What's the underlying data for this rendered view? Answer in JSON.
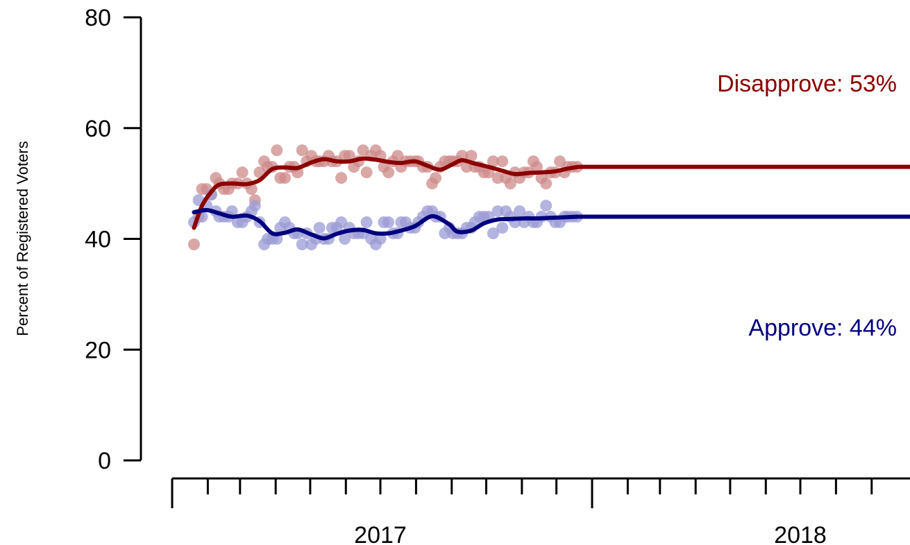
{
  "chart_data": {
    "type": "scatter",
    "title": "",
    "xlabel": "",
    "ylabel": "Percent of Registered Voters",
    "ylim": [
      0,
      80
    ],
    "y_ticks": [
      "0",
      "20",
      "40",
      "60",
      "80"
    ],
    "x_year_labels": [
      {
        "date": "2017-07-01",
        "label": "2017"
      },
      {
        "date": "2018-07-01",
        "label": "2018"
      }
    ],
    "x_major_ticks": [
      "2017-01-01",
      "2018-01-01"
    ],
    "x_minor_ticks": [
      "2017-02-01",
      "2017-03-01",
      "2017-04-01",
      "2017-05-01",
      "2017-06-01",
      "2017-07-01",
      "2017-08-01",
      "2017-09-01",
      "2017-10-01",
      "2017-11-01",
      "2017-12-01",
      "2018-02-01",
      "2018-03-01",
      "2018-04-01",
      "2018-05-01",
      "2018-06-01",
      "2018-07-01",
      "2018-08-01",
      "2018-09-01"
    ],
    "grid": false,
    "colors": {
      "disapprove": "#8b0000",
      "disapprove_points": "#cd8a8a",
      "approve": "#00007f",
      "approve_points": "#9b9bd6"
    },
    "series": [
      {
        "name": "Disapprove: 53%",
        "points": [
          [
            "2017-01-20",
            39
          ],
          [
            "2017-01-24",
            44
          ],
          [
            "2017-01-27",
            49
          ],
          [
            "2017-01-31",
            49
          ],
          [
            "2017-02-04",
            48
          ],
          [
            "2017-02-08",
            51
          ],
          [
            "2017-02-11",
            50
          ],
          [
            "2017-02-15",
            49
          ],
          [
            "2017-02-19",
            49
          ],
          [
            "2017-02-22",
            50
          ],
          [
            "2017-02-27",
            50
          ],
          [
            "2017-03-03",
            52
          ],
          [
            "2017-03-07",
            50
          ],
          [
            "2017-03-11",
            49
          ],
          [
            "2017-03-14",
            47
          ],
          [
            "2017-03-18",
            52
          ],
          [
            "2017-03-22",
            54
          ],
          [
            "2017-03-25",
            53
          ],
          [
            "2017-03-29",
            53
          ],
          [
            "2017-04-02",
            56
          ],
          [
            "2017-04-05",
            51
          ],
          [
            "2017-04-09",
            51
          ],
          [
            "2017-04-13",
            53
          ],
          [
            "2017-04-17",
            53
          ],
          [
            "2017-04-20",
            52
          ],
          [
            "2017-04-24",
            56
          ],
          [
            "2017-04-28",
            54
          ],
          [
            "2017-05-02",
            55
          ],
          [
            "2017-05-06",
            54
          ],
          [
            "2017-05-09",
            54
          ],
          [
            "2017-05-13",
            54
          ],
          [
            "2017-05-17",
            55
          ],
          [
            "2017-05-20",
            54
          ],
          [
            "2017-05-24",
            54
          ],
          [
            "2017-05-28",
            51
          ],
          [
            "2017-05-31",
            55
          ],
          [
            "2017-06-04",
            55
          ],
          [
            "2017-06-08",
            53
          ],
          [
            "2017-06-12",
            54
          ],
          [
            "2017-06-16",
            56
          ],
          [
            "2017-06-19",
            52
          ],
          [
            "2017-06-23",
            55
          ],
          [
            "2017-06-27",
            56
          ],
          [
            "2017-07-01",
            55
          ],
          [
            "2017-07-04",
            53
          ],
          [
            "2017-07-08",
            52
          ],
          [
            "2017-07-12",
            54
          ],
          [
            "2017-07-16",
            55
          ],
          [
            "2017-07-19",
            53
          ],
          [
            "2017-07-23",
            54
          ],
          [
            "2017-07-27",
            54
          ],
          [
            "2017-07-31",
            54
          ],
          [
            "2017-08-03",
            54
          ],
          [
            "2017-08-07",
            53
          ],
          [
            "2017-08-11",
            53
          ],
          [
            "2017-08-15",
            50
          ],
          [
            "2017-08-18",
            51
          ],
          [
            "2017-08-22",
            53
          ],
          [
            "2017-08-26",
            54
          ],
          [
            "2017-08-30",
            54
          ],
          [
            "2017-09-02",
            54
          ],
          [
            "2017-09-06",
            54
          ],
          [
            "2017-09-10",
            55
          ],
          [
            "2017-09-14",
            53
          ],
          [
            "2017-09-18",
            55
          ],
          [
            "2017-09-21",
            53
          ],
          [
            "2017-09-25",
            53
          ],
          [
            "2017-09-29",
            52
          ],
          [
            "2017-10-03",
            52
          ],
          [
            "2017-10-07",
            54
          ],
          [
            "2017-10-11",
            51
          ],
          [
            "2017-10-15",
            54
          ],
          [
            "2017-10-18",
            51
          ],
          [
            "2017-10-22",
            50
          ],
          [
            "2017-10-26",
            52
          ],
          [
            "2017-10-30",
            51
          ],
          [
            "2017-11-03",
            52
          ],
          [
            "2017-11-07",
            52
          ],
          [
            "2017-11-11",
            54
          ],
          [
            "2017-11-14",
            53
          ],
          [
            "2017-11-18",
            51
          ],
          [
            "2017-11-22",
            50
          ],
          [
            "2017-11-26",
            52
          ],
          [
            "2017-11-30",
            52
          ],
          [
            "2017-12-04",
            54
          ],
          [
            "2017-12-08",
            52
          ],
          [
            "2017-12-11",
            53
          ],
          [
            "2017-12-15",
            53
          ],
          [
            "2017-12-19",
            53
          ]
        ],
        "trend": [
          [
            "2017-01-20",
            42
          ],
          [
            "2017-01-27",
            46
          ],
          [
            "2017-02-04",
            48.5
          ],
          [
            "2017-02-11",
            49.8
          ],
          [
            "2017-02-22",
            50
          ],
          [
            "2017-03-07",
            49.9
          ],
          [
            "2017-03-18",
            50.6
          ],
          [
            "2017-03-29",
            52.6
          ],
          [
            "2017-04-09",
            52.9
          ],
          [
            "2017-04-20",
            52.8
          ],
          [
            "2017-05-02",
            53.8
          ],
          [
            "2017-05-13",
            54.4
          ],
          [
            "2017-05-24",
            54
          ],
          [
            "2017-06-04",
            54
          ],
          [
            "2017-06-16",
            54.5
          ],
          [
            "2017-06-27",
            54.3
          ],
          [
            "2017-07-08",
            53.9
          ],
          [
            "2017-07-19",
            53.7
          ],
          [
            "2017-07-31",
            54
          ],
          [
            "2017-08-11",
            53.2
          ],
          [
            "2017-08-22",
            52.5
          ],
          [
            "2017-09-02",
            53.5
          ],
          [
            "2017-09-10",
            54.2
          ],
          [
            "2017-09-21",
            53.6
          ],
          [
            "2017-10-03",
            53
          ],
          [
            "2017-10-15",
            52.3
          ],
          [
            "2017-10-26",
            51.7
          ],
          [
            "2017-11-07",
            51.9
          ],
          [
            "2017-11-18",
            52
          ],
          [
            "2017-11-30",
            52.2
          ],
          [
            "2017-12-11",
            52.7
          ],
          [
            "2017-12-20",
            53
          ]
        ]
      },
      {
        "name": "Approve: 44%",
        "points": [
          [
            "2017-01-20",
            43
          ],
          [
            "2017-01-24",
            47
          ],
          [
            "2017-01-27",
            44
          ],
          [
            "2017-01-31",
            46
          ],
          [
            "2017-02-04",
            48
          ],
          [
            "2017-02-08",
            45
          ],
          [
            "2017-02-11",
            44
          ],
          [
            "2017-02-15",
            44
          ],
          [
            "2017-02-19",
            44
          ],
          [
            "2017-02-22",
            45
          ],
          [
            "2017-02-27",
            43
          ],
          [
            "2017-03-03",
            43
          ],
          [
            "2017-03-07",
            44
          ],
          [
            "2017-03-11",
            45
          ],
          [
            "2017-03-14",
            46
          ],
          [
            "2017-03-18",
            43
          ],
          [
            "2017-03-22",
            39
          ],
          [
            "2017-03-25",
            40
          ],
          [
            "2017-03-29",
            40
          ],
          [
            "2017-04-02",
            40
          ],
          [
            "2017-04-05",
            42
          ],
          [
            "2017-04-09",
            43
          ],
          [
            "2017-04-13",
            42
          ],
          [
            "2017-04-17",
            41
          ],
          [
            "2017-04-20",
            41
          ],
          [
            "2017-04-24",
            39
          ],
          [
            "2017-04-28",
            41
          ],
          [
            "2017-05-02",
            39
          ],
          [
            "2017-05-06",
            40
          ],
          [
            "2017-05-09",
            42
          ],
          [
            "2017-05-13",
            40
          ],
          [
            "2017-05-17",
            40
          ],
          [
            "2017-05-20",
            42
          ],
          [
            "2017-05-24",
            42
          ],
          [
            "2017-05-28",
            43
          ],
          [
            "2017-05-31",
            40
          ],
          [
            "2017-06-04",
            42
          ],
          [
            "2017-06-08",
            41
          ],
          [
            "2017-06-12",
            41
          ],
          [
            "2017-06-16",
            41
          ],
          [
            "2017-06-19",
            43
          ],
          [
            "2017-06-23",
            40
          ],
          [
            "2017-06-27",
            39
          ],
          [
            "2017-07-01",
            40
          ],
          [
            "2017-07-04",
            43
          ],
          [
            "2017-07-08",
            43
          ],
          [
            "2017-07-12",
            41
          ],
          [
            "2017-07-16",
            41
          ],
          [
            "2017-07-19",
            43
          ],
          [
            "2017-07-23",
            43
          ],
          [
            "2017-07-27",
            42
          ],
          [
            "2017-07-31",
            42
          ],
          [
            "2017-08-03",
            43
          ],
          [
            "2017-08-07",
            44
          ],
          [
            "2017-08-11",
            45
          ],
          [
            "2017-08-15",
            45
          ],
          [
            "2017-08-18",
            44
          ],
          [
            "2017-08-22",
            44
          ],
          [
            "2017-08-26",
            41
          ],
          [
            "2017-08-30",
            42
          ],
          [
            "2017-09-02",
            41
          ],
          [
            "2017-09-06",
            41
          ],
          [
            "2017-09-10",
            41
          ],
          [
            "2017-09-14",
            42
          ],
          [
            "2017-09-18",
            42
          ],
          [
            "2017-09-21",
            43
          ],
          [
            "2017-09-25",
            44
          ],
          [
            "2017-09-29",
            44
          ],
          [
            "2017-10-03",
            44
          ],
          [
            "2017-10-07",
            41
          ],
          [
            "2017-10-11",
            45
          ],
          [
            "2017-10-15",
            42
          ],
          [
            "2017-10-18",
            45
          ],
          [
            "2017-10-22",
            44
          ],
          [
            "2017-10-26",
            43
          ],
          [
            "2017-10-30",
            45
          ],
          [
            "2017-11-03",
            43
          ],
          [
            "2017-11-07",
            44
          ],
          [
            "2017-11-11",
            43
          ],
          [
            "2017-11-14",
            43
          ],
          [
            "2017-11-18",
            44
          ],
          [
            "2017-11-22",
            46
          ],
          [
            "2017-11-26",
            44
          ],
          [
            "2017-11-30",
            43
          ],
          [
            "2017-12-04",
            43
          ],
          [
            "2017-12-08",
            44
          ],
          [
            "2017-12-11",
            44
          ],
          [
            "2017-12-15",
            44
          ],
          [
            "2017-12-19",
            44
          ]
        ],
        "trend": [
          [
            "2017-01-20",
            44.8
          ],
          [
            "2017-01-31",
            45.2
          ],
          [
            "2017-02-11",
            44.6
          ],
          [
            "2017-02-22",
            44
          ],
          [
            "2017-03-07",
            44.2
          ],
          [
            "2017-03-18",
            43.2
          ],
          [
            "2017-03-29",
            41
          ],
          [
            "2017-04-09",
            41.1
          ],
          [
            "2017-04-20",
            41.7
          ],
          [
            "2017-05-02",
            40.8
          ],
          [
            "2017-05-13",
            40.1
          ],
          [
            "2017-05-24",
            40.9
          ],
          [
            "2017-06-04",
            41.5
          ],
          [
            "2017-06-16",
            41.6
          ],
          [
            "2017-06-27",
            41
          ],
          [
            "2017-07-08",
            41
          ],
          [
            "2017-07-19",
            41.5
          ],
          [
            "2017-07-31",
            42.3
          ],
          [
            "2017-08-11",
            43.8
          ],
          [
            "2017-08-18",
            44
          ],
          [
            "2017-08-30",
            42.6
          ],
          [
            "2017-09-06",
            41.3
          ],
          [
            "2017-09-18",
            41.5
          ],
          [
            "2017-09-29",
            42.8
          ],
          [
            "2017-10-11",
            43.5
          ],
          [
            "2017-10-22",
            43.6
          ],
          [
            "2017-11-03",
            43.7
          ],
          [
            "2017-11-14",
            43.7
          ],
          [
            "2017-11-26",
            43.8
          ],
          [
            "2017-12-08",
            43.9
          ],
          [
            "2017-12-20",
            44
          ]
        ]
      }
    ],
    "annotations": [
      {
        "text": "Disapprove: 53%",
        "series": 0,
        "y": 68
      },
      {
        "text": "Approve: 44%",
        "series": 1,
        "y": 27
      }
    ]
  }
}
